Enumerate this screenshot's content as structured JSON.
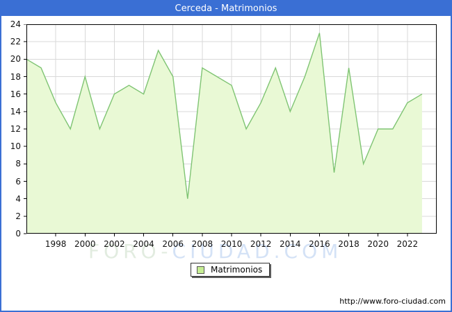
{
  "window": {
    "title": "Cerceda - Matrimonios"
  },
  "chart_data": {
    "type": "area",
    "title": "Cerceda - Matrimonios",
    "x": [
      1996,
      1997,
      1998,
      1999,
      2000,
      2001,
      2002,
      2003,
      2004,
      2005,
      2006,
      2007,
      2008,
      2009,
      2010,
      2011,
      2012,
      2013,
      2014,
      2015,
      2016,
      2017,
      2018,
      2019,
      2020,
      2021,
      2022,
      2023
    ],
    "series": [
      {
        "name": "Matrimonios",
        "values": [
          20,
          19,
          15,
          12,
          18,
          12,
          16,
          17,
          16,
          21,
          18,
          4,
          19,
          18,
          17,
          12,
          15,
          19,
          14,
          18,
          23,
          7,
          19,
          8,
          12,
          12,
          15,
          16
        ]
      }
    ],
    "xlim": [
      1996,
      2024
    ],
    "ylim": [
      0,
      24
    ],
    "y_ticks": [
      0,
      2,
      4,
      6,
      8,
      10,
      12,
      14,
      16,
      18,
      20,
      22,
      24
    ],
    "x_tick_labels": [
      "1998",
      "2000",
      "2002",
      "2004",
      "2006",
      "2008",
      "2010",
      "2012",
      "2014",
      "2016",
      "2018",
      "2020",
      "2022"
    ],
    "x_ticks": [
      1998,
      2000,
      2002,
      2004,
      2006,
      2008,
      2010,
      2012,
      2014,
      2016,
      2018,
      2020,
      2022
    ],
    "grid": true,
    "legend_position": "bottom-center"
  },
  "legend": {
    "label": "Matrimonios"
  },
  "footer": {
    "url": "http://www.foro-ciudad.com"
  },
  "watermark": {
    "text1": "FORO-",
    "text2": "CIUDAD.COM"
  },
  "colors": {
    "accent_blue": "#3a6fd4",
    "line_green": "#7fc473",
    "fill_green": "#e9f9d5",
    "gridline": "#d8d8d8",
    "plot_border": "#000000",
    "watermark_green": "#e2ece0",
    "watermark_blue": "#d4e2f6",
    "legend_swatch_fill": "#c6ee94"
  }
}
